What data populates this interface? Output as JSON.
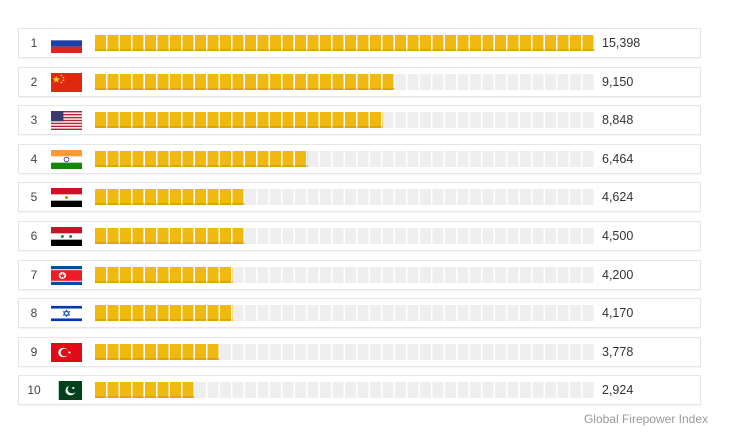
{
  "chart_data": {
    "type": "bar",
    "orientation": "horizontal",
    "categories": [
      "1",
      "2",
      "3",
      "4",
      "5",
      "6",
      "7",
      "8",
      "9",
      "10"
    ],
    "flags": [
      "russia",
      "china",
      "usa",
      "india",
      "egypt",
      "syria",
      "north-korea",
      "israel",
      "turkey",
      "pakistan"
    ],
    "values": [
      15398,
      9150,
      8848,
      6464,
      4624,
      4500,
      4200,
      4170,
      3778,
      2924
    ],
    "value_labels": [
      "15,398",
      "9,150",
      "8,848",
      "6,464",
      "4,624",
      "4,500",
      "4,200",
      "4,170",
      "3,778",
      "2,924"
    ],
    "xlim": [
      0,
      15398
    ],
    "bar_color": "#f0b90f",
    "track_color": "#eeeeee"
  },
  "source": "Global Firepower Index"
}
